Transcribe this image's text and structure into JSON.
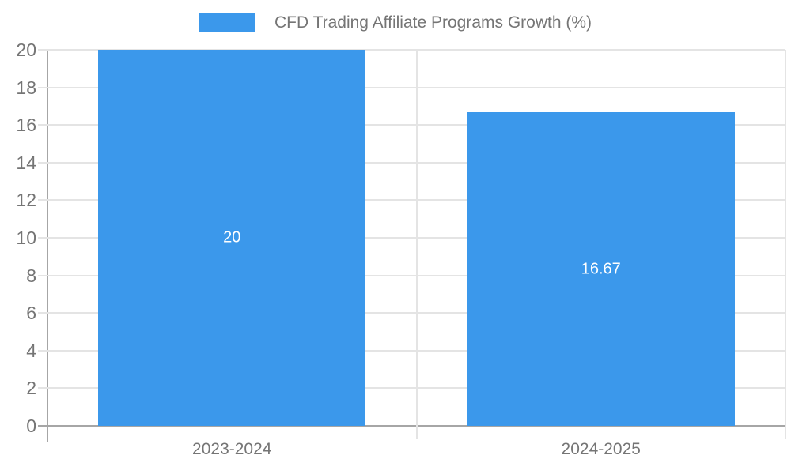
{
  "legend": {
    "label": "CFD Trading Affiliate Programs Growth (%)"
  },
  "colors": {
    "bar": "#3b98eb",
    "axis": "#a6a6a6",
    "grid": "#e4e4e4",
    "tick_label": "#757575",
    "bar_label": "#ffffff",
    "background": "#ffffff"
  },
  "chart_data": {
    "type": "bar",
    "title": "CFD Trading Affiliate Programs Growth (%)",
    "categories": [
      "2023-2024",
      "2024-2025"
    ],
    "values": [
      20,
      16.67
    ],
    "bar_labels": [
      "20",
      "16.67"
    ],
    "xlabel": "",
    "ylabel": "",
    "ylim": [
      0,
      20
    ],
    "y_ticks": [
      0,
      2,
      4,
      6,
      8,
      10,
      12,
      14,
      16,
      18,
      20
    ],
    "grid": true,
    "legend_position": "top-center"
  }
}
